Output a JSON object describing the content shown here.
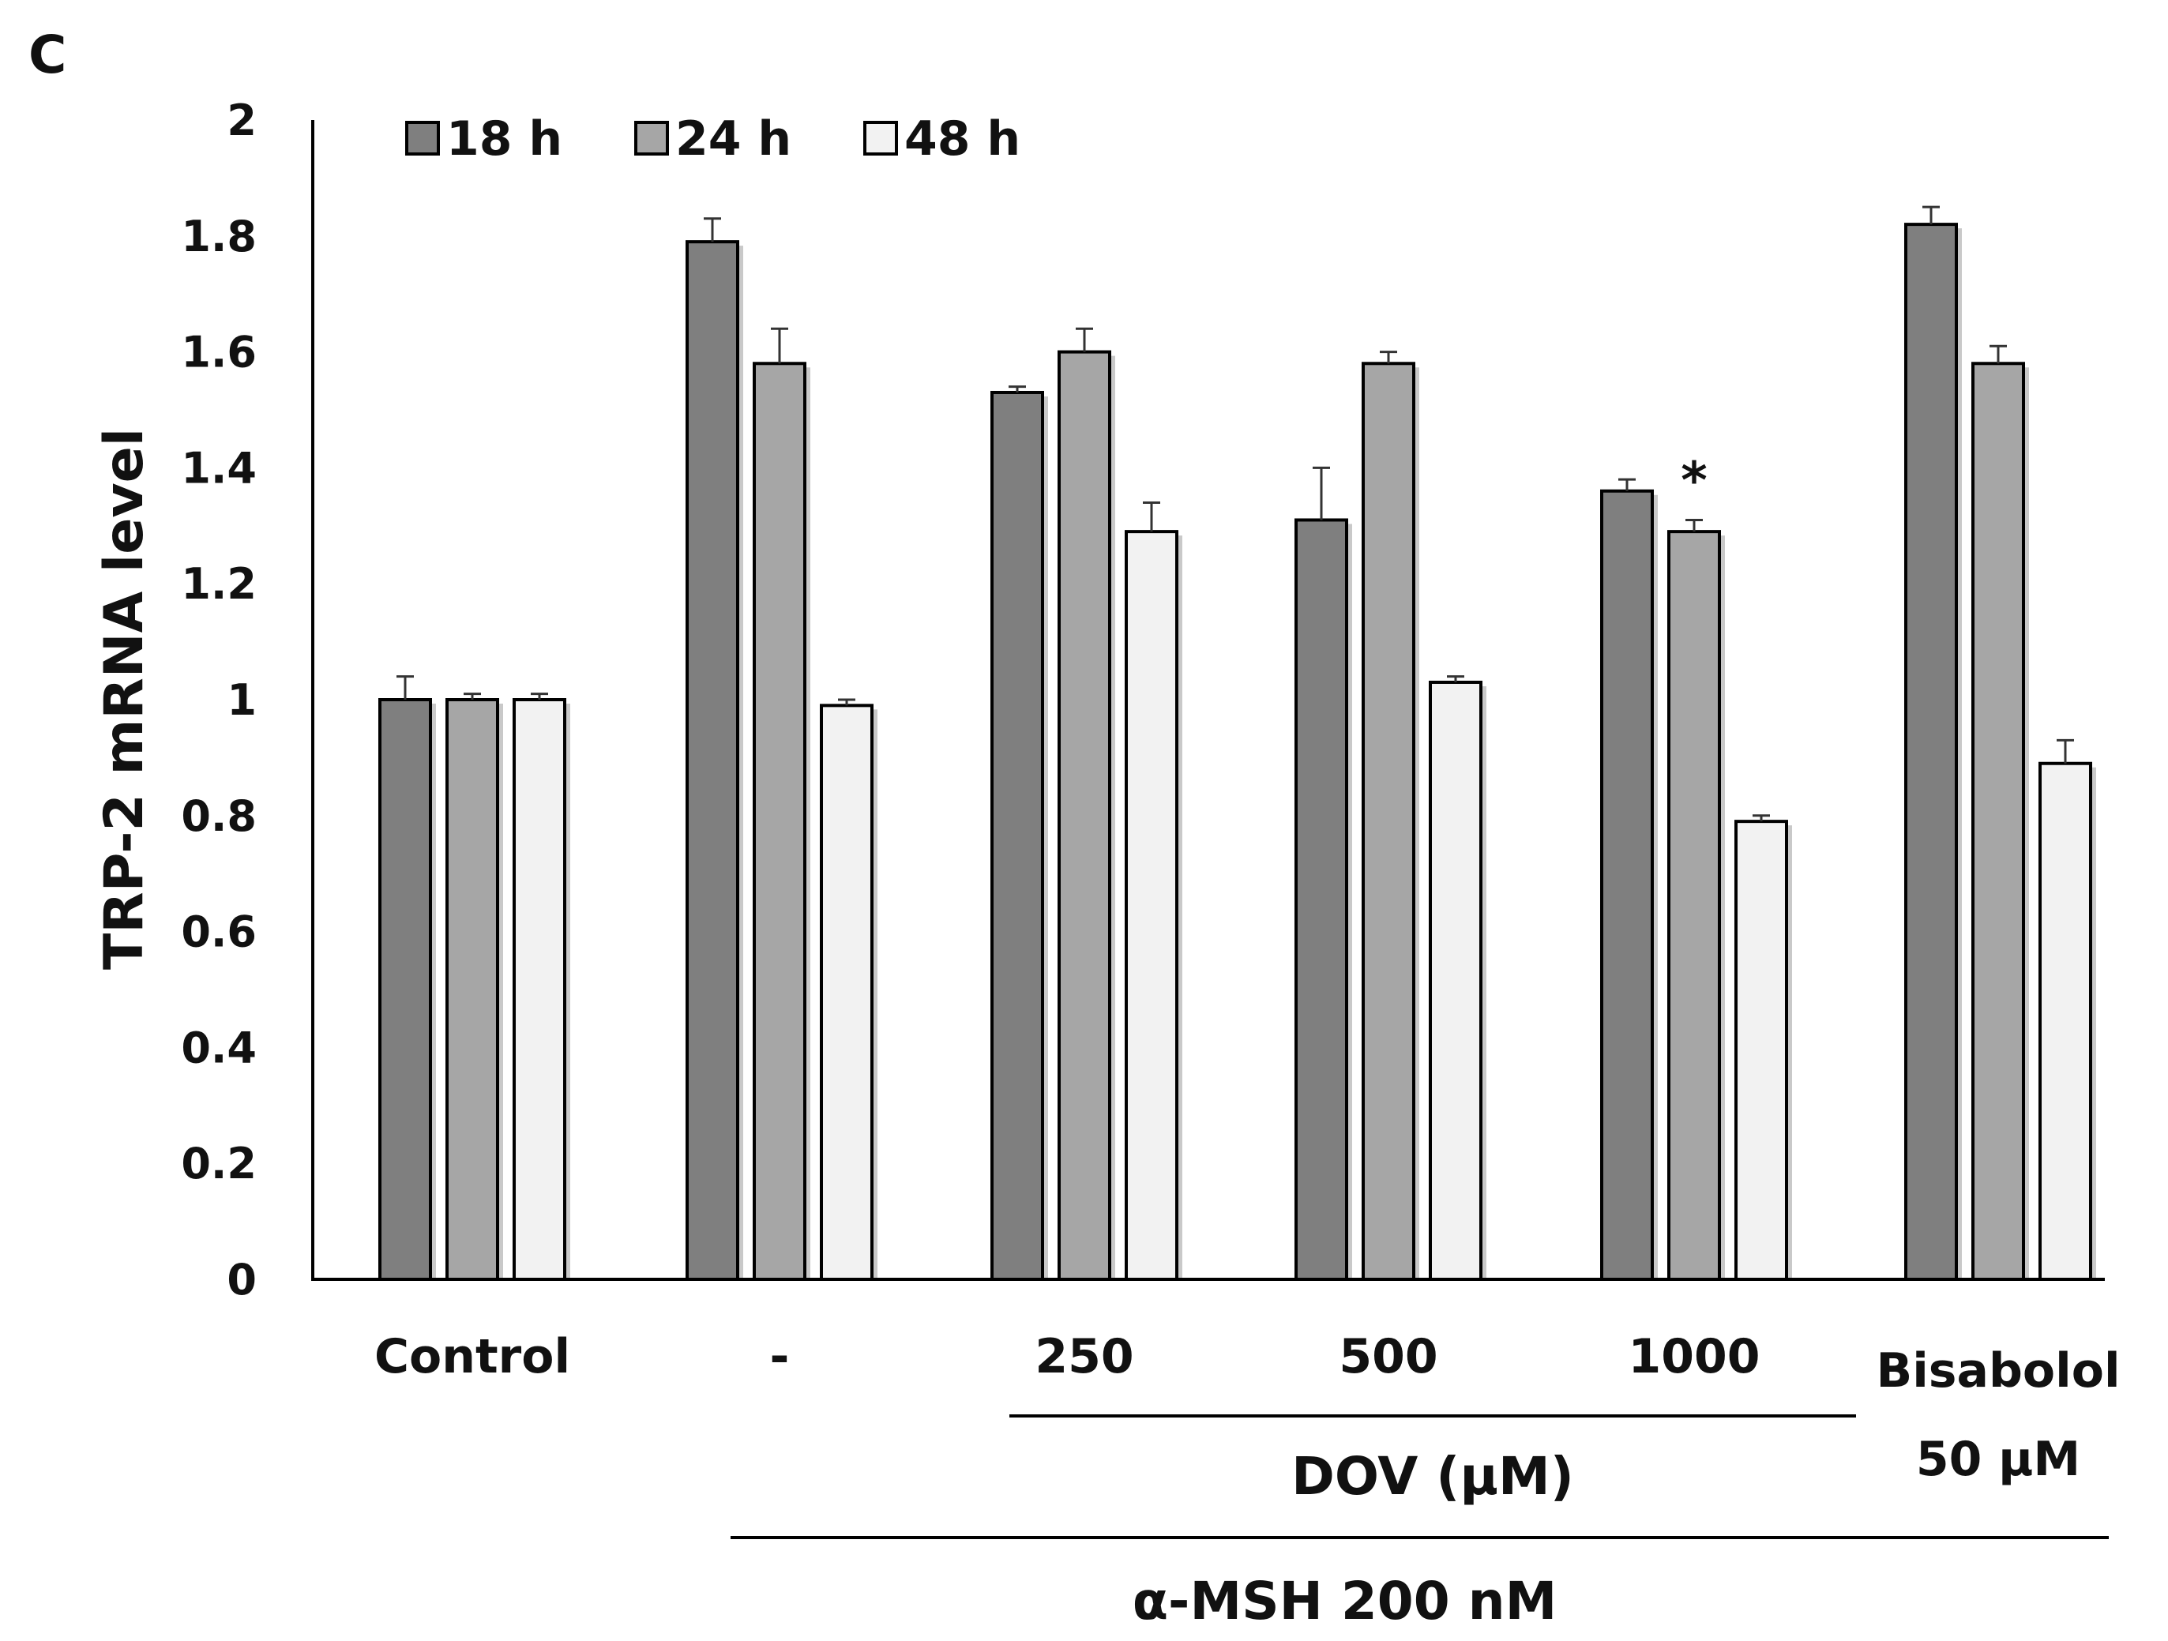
{
  "panel_label": "C",
  "chart_data": {
    "type": "bar",
    "ylabel": "TRP-2 mRNA level",
    "ylim": [
      0,
      2
    ],
    "yticks": [
      "0",
      "0.2",
      "0.4",
      "0.6",
      "0.8",
      "1",
      "1.2",
      "1.4",
      "1.6",
      "1.8",
      "2"
    ],
    "categories": [
      "Control",
      "-",
      "250",
      "500",
      "1000",
      "Bisabolol"
    ],
    "category_sublabel": {
      "index": 5,
      "text": "50 μM"
    },
    "series": [
      {
        "name": "18 h",
        "color": "#7f7f7f",
        "values": [
          1.0,
          1.79,
          1.53,
          1.31,
          1.36,
          1.82
        ],
        "errors": [
          0.04,
          0.04,
          0.01,
          0.09,
          0.02,
          0.03
        ]
      },
      {
        "name": "24 h",
        "color": "#a6a6a6",
        "values": [
          1.0,
          1.58,
          1.6,
          1.58,
          1.29,
          1.58
        ],
        "errors": [
          0.01,
          0.06,
          0.04,
          0.02,
          0.02,
          0.03
        ]
      },
      {
        "name": "48 h",
        "color": "#f2f2f2",
        "values": [
          1.0,
          0.99,
          1.29,
          1.03,
          0.79,
          0.89
        ],
        "errors": [
          0.01,
          0.01,
          0.05,
          0.01,
          0.01,
          0.04
        ]
      }
    ],
    "significance": [
      {
        "category_index": 4,
        "series_index": 1,
        "mark": "*"
      }
    ],
    "group_labels": [
      {
        "text": "DOV (μM)",
        "from_index": 2,
        "to_index": 4
      },
      {
        "text": "α-MSH 200 nM",
        "from_index": 1,
        "to_index": 5
      }
    ],
    "legend_position": "top-left"
  }
}
